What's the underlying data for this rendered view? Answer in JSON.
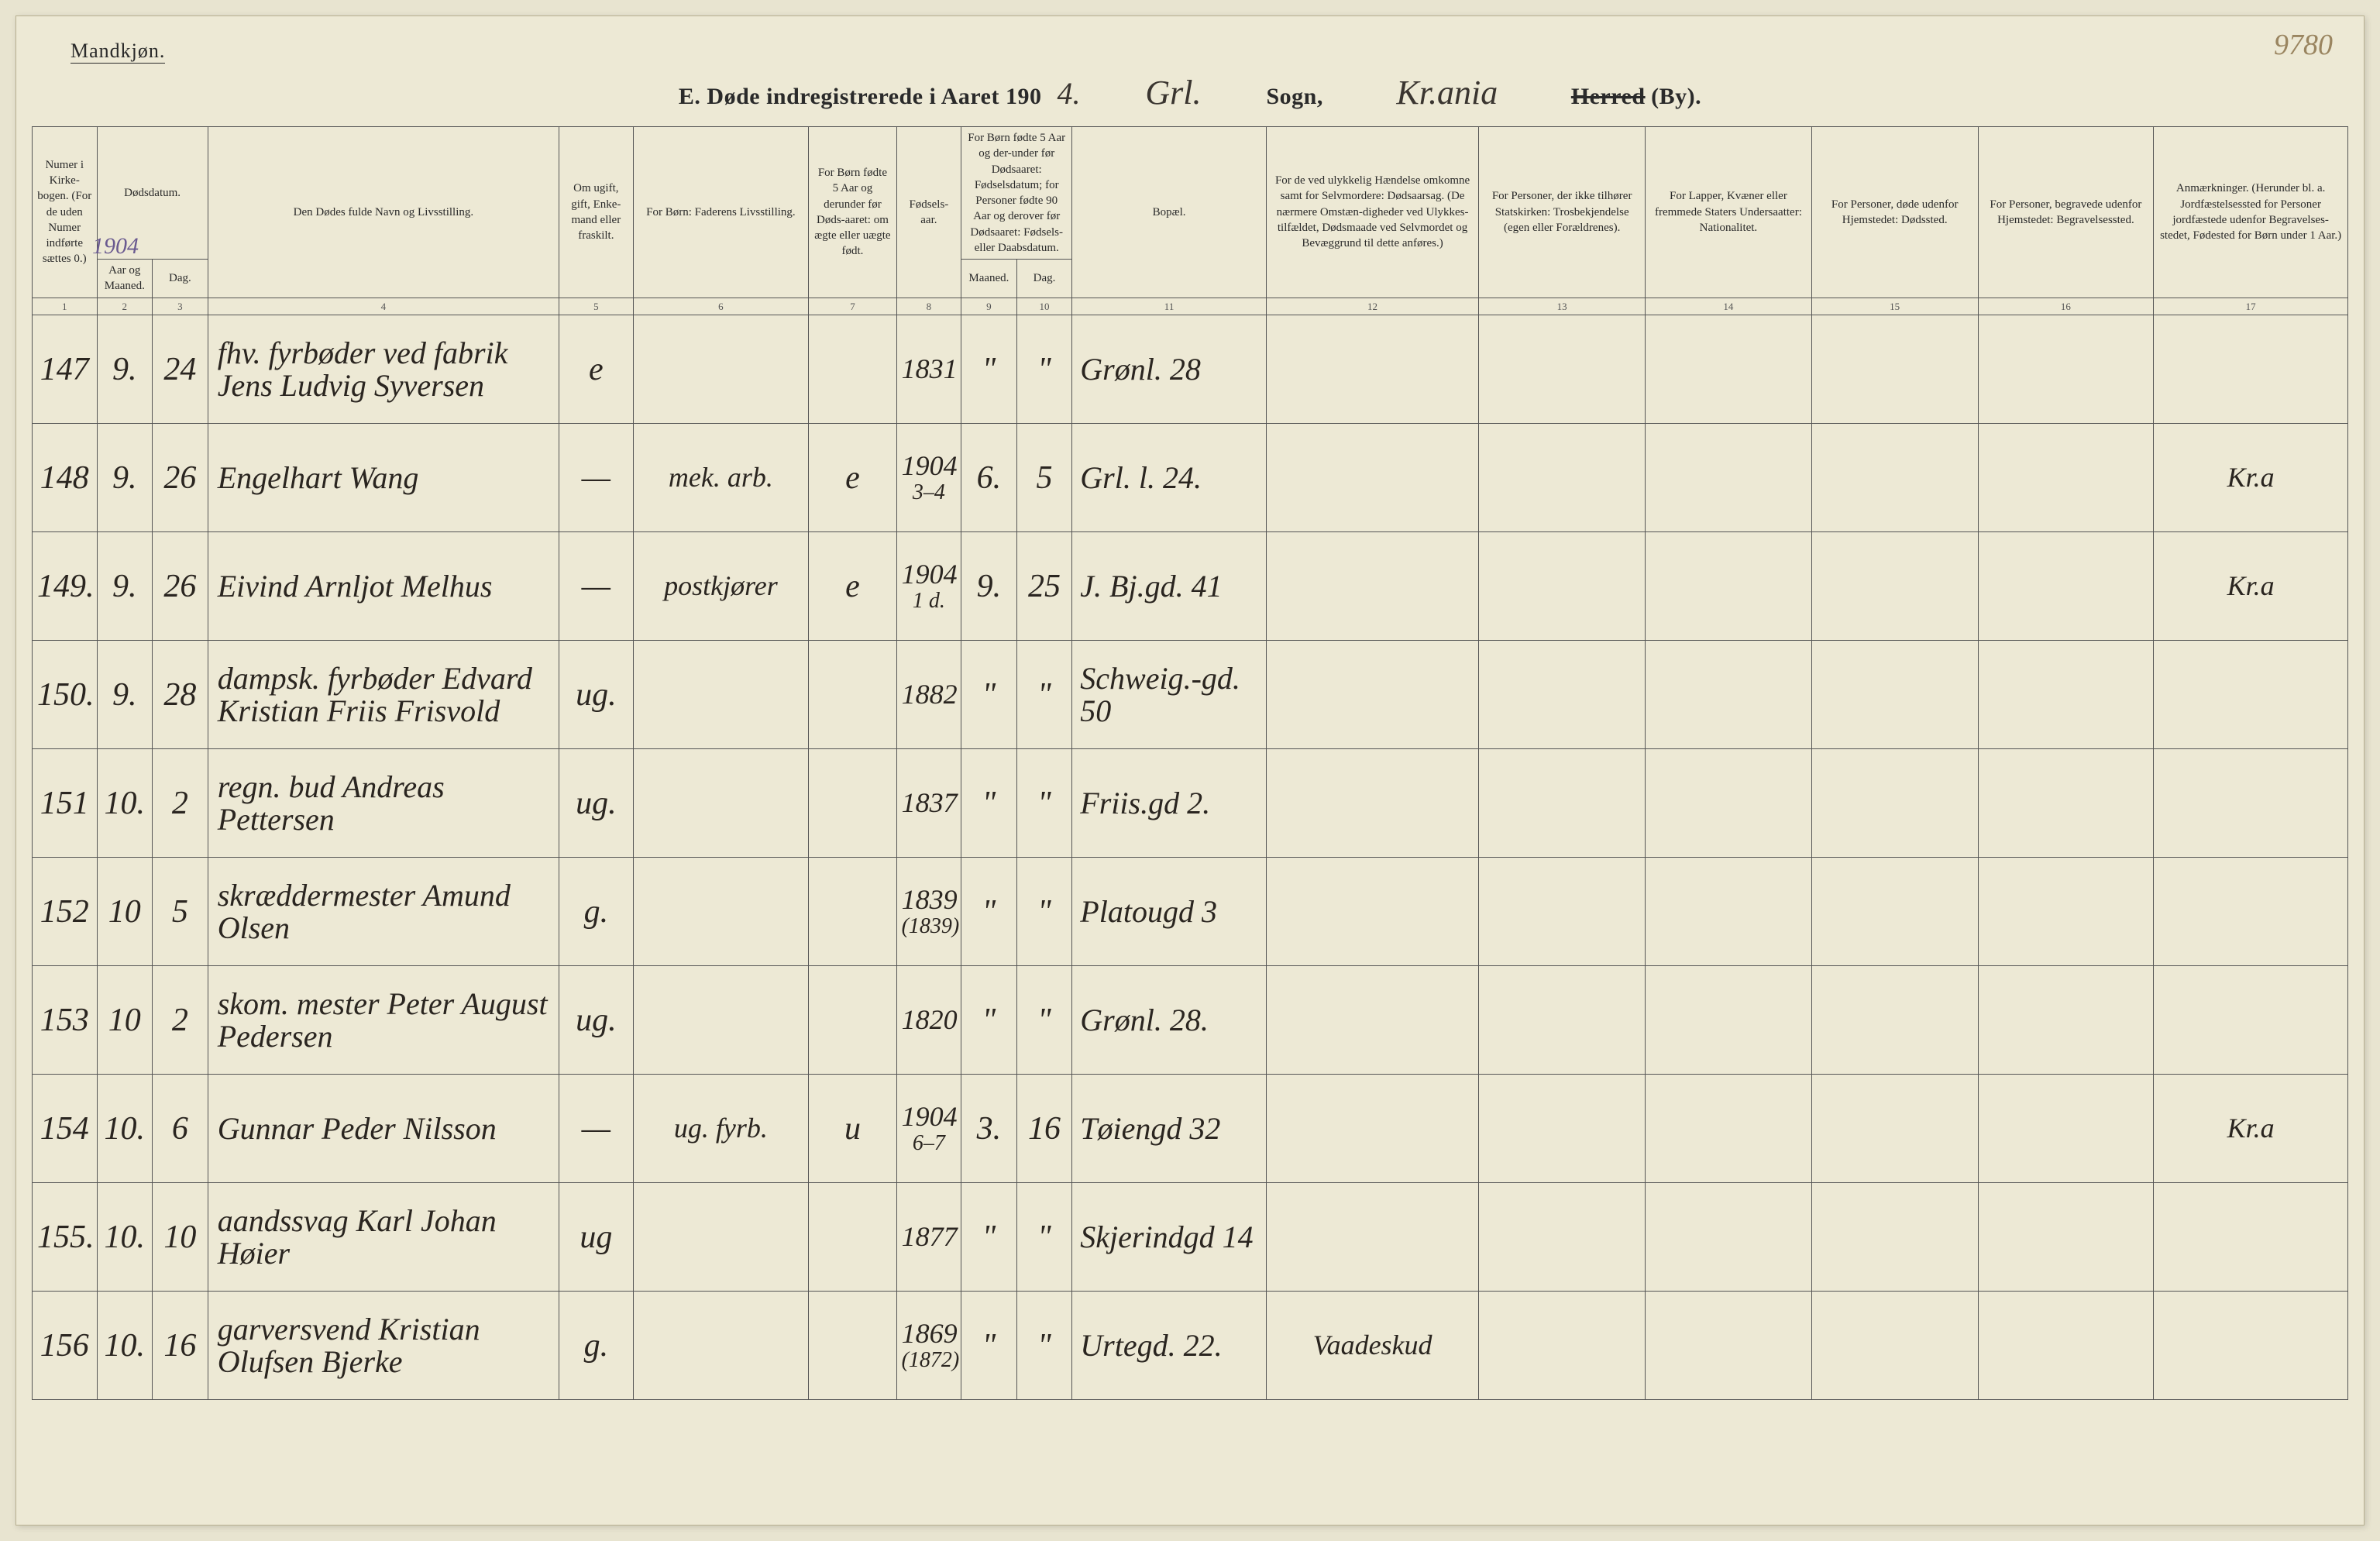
{
  "page_number_hand": "9780",
  "gender_label": "Mandkjøn.",
  "title": {
    "printed_prefix": "E.  Døde indregistrerede i Aaret 190",
    "year_hand": "4.",
    "sogn_hand": "Grl.",
    "sogn_label": "Sogn,",
    "herred_hand": "Kr.ania",
    "herred_label_strike": "Herred",
    "by_label": "(By)."
  },
  "headers": {
    "c1": "Numer i Kirke-bogen. (For de uden Numer indførte sættes 0.)",
    "c2_top": "Dødsdatum.",
    "c2": "Aar og Maaned.",
    "c3": "Dag.",
    "c4": "Den Dødes fulde Navn og Livsstilling.",
    "c5": "Om ugift, gift, Enke-mand eller fraskilt.",
    "c6": "For Børn: Faderens Livsstilling.",
    "c7": "For Børn fødte 5 Aar og derunder før Døds-aaret: om ægte eller uægte født.",
    "c8": "Fødsels-aar.",
    "c9_10_top": "For Børn fødte 5 Aar og der-under før Dødsaaret: Fødselsdatum; for Personer fødte 90 Aar og derover før Dødsaaret: Fødsels- eller Daabsdatum.",
    "c9": "Maaned.",
    "c10": "Dag.",
    "c11": "Bopæl.",
    "c12": "For de ved ulykkelig Hændelse omkomne samt for Selvmordere: Dødsaarsag. (De nærmere Omstæn-digheder ved Ulykkes-tilfældet, Dødsmaade ved Selvmordet og Bevæggrund til dette anføres.)",
    "c13": "For Personer, der ikke tilhører Statskirken: Trosbekjendelse (egen eller Forældrenes).",
    "c14": "For Lapper, Kvæner eller fremmede Staters Undersaatter: Nationalitet.",
    "c15": "For Personer, døde udenfor Hjemstedet: Dødssted.",
    "c16": "For Personer, begravede udenfor Hjemstedet: Begravelsessted.",
    "c17": "Anmærkninger. (Herunder bl. a. Jordfæstelsessted for Personer jordfæstede udenfor Begravelses-stedet, Fødested for Børn under 1 Aar.)"
  },
  "colnums": [
    "1",
    "2",
    "3",
    "4",
    "5",
    "6",
    "7",
    "8",
    "9",
    "10",
    "11",
    "12",
    "13",
    "14",
    "15",
    "16",
    "17"
  ],
  "year_annotation": "1904",
  "rows": [
    {
      "num": "147",
      "maaned": "9.",
      "dag": "24",
      "navn": "fhv. fyrbøder ved fabrik Jens Ludvig Syversen",
      "civil": "e",
      "faderens": "",
      "aegte": "",
      "faar": "1831",
      "fmaaned": "\"",
      "fdag": "\"",
      "bopael": "Grønl. 28",
      "aarsag": "",
      "tros": "",
      "nat": "",
      "dodssted": "",
      "begrav": "",
      "anm": ""
    },
    {
      "num": "148",
      "maaned": "9.",
      "dag": "26",
      "navn": "Engelhart Wang",
      "civil": "—",
      "faderens": "mek. arb.",
      "aegte": "e",
      "faar": "1904\n3–4",
      "fmaaned": "6.",
      "fdag": "5",
      "bopael": "Grl. l. 24.",
      "aarsag": "",
      "tros": "",
      "nat": "",
      "dodssted": "",
      "begrav": "",
      "anm": "Kr.a"
    },
    {
      "num": "149.",
      "maaned": "9.",
      "dag": "26",
      "navn": "Eivind Arnljot Melhus",
      "civil": "—",
      "faderens": "postkjører",
      "aegte": "e",
      "faar": "1904\n1 d.",
      "fmaaned": "9.",
      "fdag": "25",
      "bopael": "J. Bj.gd. 41",
      "aarsag": "",
      "tros": "",
      "nat": "",
      "dodssted": "",
      "begrav": "",
      "anm": "Kr.a"
    },
    {
      "num": "150.",
      "maaned": "9.",
      "dag": "28",
      "navn": "dampsk. fyrbøder Edvard Kristian Friis Frisvold",
      "civil": "ug.",
      "faderens": "",
      "aegte": "",
      "faar": "1882",
      "fmaaned": "\"",
      "fdag": "\"",
      "bopael": "Schweig.-gd. 50",
      "aarsag": "",
      "tros": "",
      "nat": "",
      "dodssted": "",
      "begrav": "",
      "anm": ""
    },
    {
      "num": "151",
      "maaned": "10.",
      "dag": "2",
      "navn": "regn. bud Andreas Pettersen",
      "civil": "ug.",
      "faderens": "",
      "aegte": "",
      "faar": "1837",
      "fmaaned": "\"",
      "fdag": "\"",
      "bopael": "Friis.gd 2.",
      "aarsag": "",
      "tros": "",
      "nat": "",
      "dodssted": "",
      "begrav": "",
      "anm": ""
    },
    {
      "num": "152",
      "maaned": "10",
      "dag": "5",
      "navn": "skræddermester Amund Olsen",
      "civil": "g.",
      "faderens": "",
      "aegte": "",
      "faar": "1839\n(1839)",
      "fmaaned": "\"",
      "fdag": "\"",
      "bopael": "Platougd 3",
      "aarsag": "",
      "tros": "",
      "nat": "",
      "dodssted": "",
      "begrav": "",
      "anm": ""
    },
    {
      "num": "153",
      "maaned": "10",
      "dag": "2",
      "navn": "skom. mester Peter August Pedersen",
      "civil": "ug.",
      "faderens": "",
      "aegte": "",
      "faar": "1820",
      "fmaaned": "\"",
      "fdag": "\"",
      "bopael": "Grønl. 28.",
      "aarsag": "",
      "tros": "",
      "nat": "",
      "dodssted": "",
      "begrav": "",
      "anm": ""
    },
    {
      "num": "154",
      "maaned": "10.",
      "dag": "6",
      "navn": "Gunnar Peder Nilsson",
      "civil": "—",
      "faderens": "ug. fyrb.",
      "aegte": "u",
      "faar": "1904\n6–7",
      "fmaaned": "3.",
      "fdag": "16",
      "bopael": "Tøiengd 32",
      "aarsag": "",
      "tros": "",
      "nat": "",
      "dodssted": "",
      "begrav": "",
      "anm": "Kr.a"
    },
    {
      "num": "155.",
      "maaned": "10.",
      "dag": "10",
      "navn": "aandssvag Karl Johan Høier",
      "civil": "ug",
      "faderens": "",
      "aegte": "",
      "faar": "1877",
      "fmaaned": "\"",
      "fdag": "\"",
      "bopael": "Skjerindgd 14",
      "aarsag": "",
      "tros": "",
      "nat": "",
      "dodssted": "",
      "begrav": "",
      "anm": ""
    },
    {
      "num": "156",
      "maaned": "10.",
      "dag": "16",
      "navn": "garversvend Kristian Olufsen Bjerke",
      "civil": "g.",
      "faderens": "",
      "aegte": "",
      "faar": "1869\n(1872)",
      "fmaaned": "\"",
      "fdag": "\"",
      "bopael": "Urtegd. 22.",
      "aarsag": "Vaadeskud",
      "tros": "",
      "nat": "",
      "dodssted": "",
      "begrav": "",
      "anm": ""
    }
  ],
  "style": {
    "page_bg": "#ede9d5",
    "border_color": "#555555",
    "hand_color": "#2a2520",
    "print_color": "#2a2a2a",
    "annotation_color": "#6a5a90",
    "page_number_color": "#9a8560",
    "hand_font": "Brush Script MT, cursive",
    "print_font": "Georgia, serif",
    "header_fontsize_pt": 11,
    "body_hand_fontsize_pt": 30,
    "title_fontsize_pt": 22
  }
}
